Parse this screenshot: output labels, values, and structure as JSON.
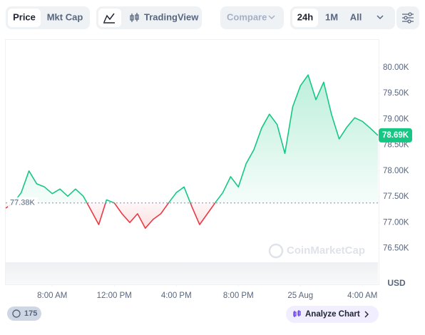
{
  "toolbar": {
    "price": "Price",
    "mkt_cap": "Mkt Cap",
    "tradingview": "TradingView",
    "compare": "Compare",
    "range_24h": "24h",
    "range_1m": "1M",
    "range_all": "All"
  },
  "footer": {
    "badge": "175",
    "analyze": "Analyze Chart"
  },
  "chart_data": {
    "type": "line",
    "watermark": "CoinMarketCap",
    "y_label": "USD",
    "x": [
      5,
      5.5,
      6,
      6.5,
      7,
      7.5,
      8,
      8.5,
      9,
      9.5,
      10,
      10.5,
      11,
      11.5,
      12,
      12.5,
      13,
      13.5,
      14,
      14.5,
      15,
      15.5,
      16,
      16.5,
      17,
      17.5,
      18,
      18.5,
      19,
      19.5,
      20,
      20.5,
      21,
      21.5,
      22,
      22.5,
      23,
      23.5,
      24,
      24.5,
      25,
      25.5,
      26,
      26.5,
      27,
      27.5,
      28,
      28.5,
      29
    ],
    "series": [
      {
        "color": "#16c784",
        "down_color": "#ea3943",
        "values": [
          77280,
          77380,
          77580,
          78000,
          77750,
          77690,
          77560,
          77650,
          77510,
          77650,
          77510,
          77240,
          76960,
          77440,
          77380,
          77170,
          77000,
          77170,
          76890,
          77060,
          77170,
          77380,
          77580,
          77690,
          77310,
          76960,
          77170,
          77380,
          77580,
          77890,
          77690,
          78140,
          78410,
          78830,
          79100,
          78900,
          78340,
          79240,
          79650,
          79860,
          79380,
          79720,
          79100,
          78620,
          78850,
          79030,
          78960,
          78830,
          78690
        ]
      }
    ],
    "xlim": [
      5,
      29
    ],
    "xticks": [
      {
        "value": 8,
        "label": "8:00 AM"
      },
      {
        "value": 12,
        "label": "12:00 PM"
      },
      {
        "value": 16,
        "label": "4:00 PM"
      },
      {
        "value": 20,
        "label": "8:00 PM"
      },
      {
        "value": 24,
        "label": "25 Aug"
      },
      {
        "value": 28,
        "label": "4:00 AM"
      }
    ],
    "ylim": [
      76100,
      80500
    ],
    "yticks": [
      {
        "value": 76500,
        "label": "76.50K"
      },
      {
        "value": 77000,
        "label": "77.00K"
      },
      {
        "value": 77500,
        "label": "77.50K"
      },
      {
        "value": 78000,
        "label": "78.00K"
      },
      {
        "value": 78500,
        "label": "78.50K"
      },
      {
        "value": 79000,
        "label": "79.00K"
      },
      {
        "value": 79500,
        "label": "79.50K"
      },
      {
        "value": 80000,
        "label": "80.00K"
      }
    ],
    "reference": {
      "value": 77380,
      "label": "77.38K"
    },
    "last_price": {
      "value": 78690,
      "label": "78.69K"
    },
    "grid": false
  }
}
